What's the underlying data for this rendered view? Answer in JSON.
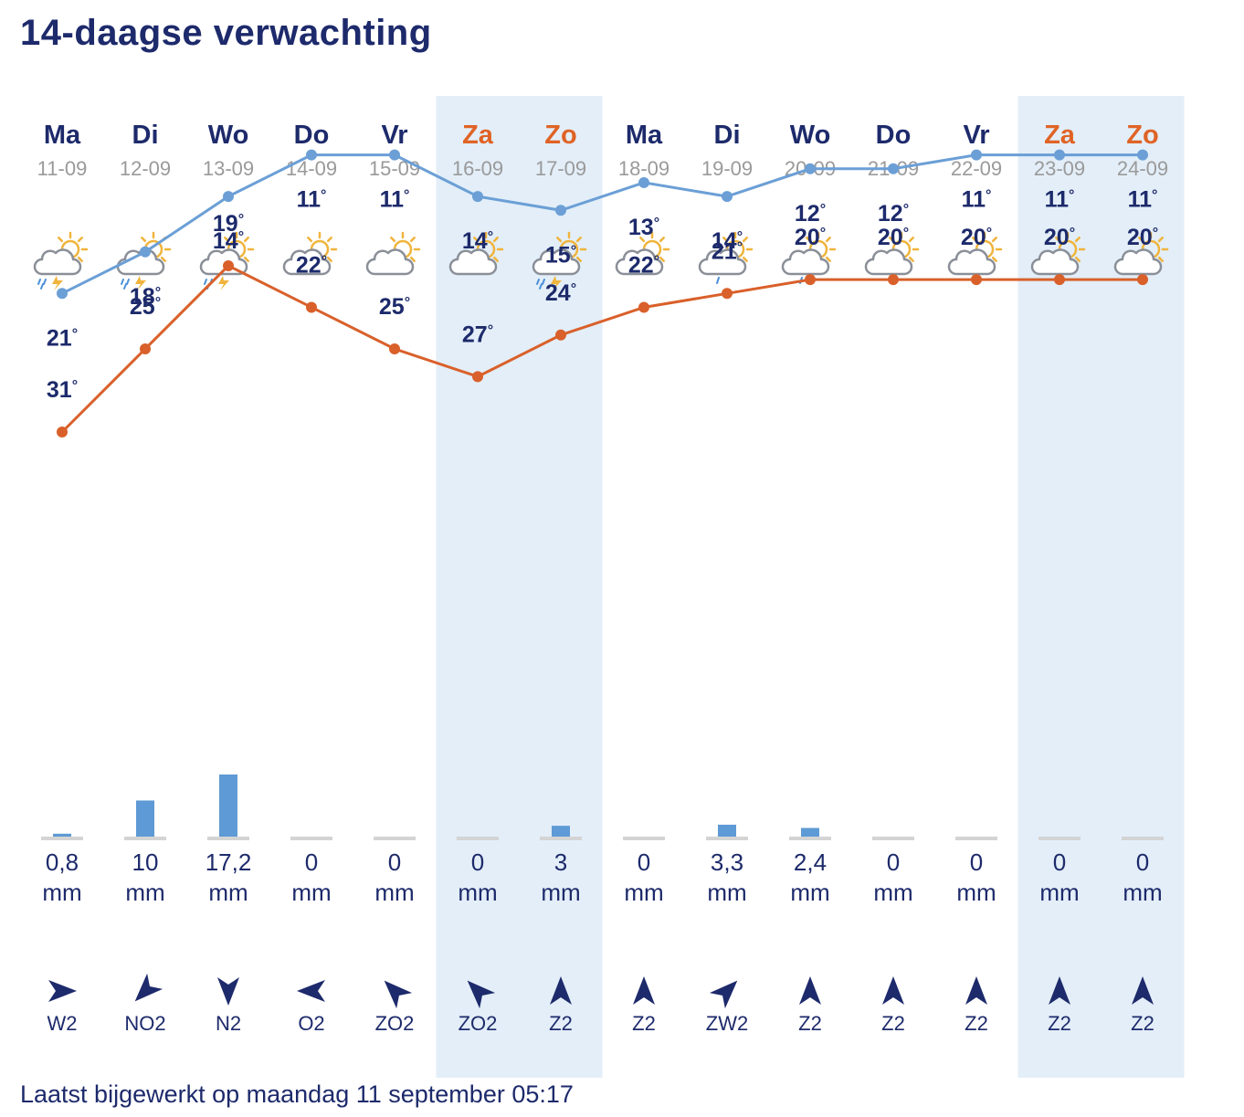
{
  "page": {
    "title": "14-daagse verwachting",
    "footer": "Laatst bijgewerkt op maandag 11 september 05:17"
  },
  "colors": {
    "max_line": "#d9602a",
    "min_line": "#6b9fd6",
    "weekend_bg": "#e3eef8",
    "text": "#1d2a6b",
    "weekend_text": "#e06326"
  },
  "chart_data": {
    "type": "line",
    "title": "14-daagse verwachting",
    "categories": [
      "Ma",
      "Di",
      "Wo",
      "Do",
      "Vr",
      "Za",
      "Zo",
      "Ma",
      "Di",
      "Wo",
      "Do",
      "Vr",
      "Za",
      "Zo"
    ],
    "dates": [
      "11-09",
      "12-09",
      "13-09",
      "14-09",
      "15-09",
      "16-09",
      "17-09",
      "18-09",
      "19-09",
      "20-09",
      "21-09",
      "22-09",
      "23-09",
      "24-09"
    ],
    "weekend": [
      false,
      false,
      false,
      false,
      false,
      true,
      true,
      false,
      false,
      false,
      false,
      false,
      true,
      true
    ],
    "icons": [
      "sun-cloud-thunder-rain-icon",
      "sun-cloud-thunder-rain-icon",
      "sun-cloud-thunder-rain-icon",
      "sun-cloud-icon",
      "sun-cloud-icon",
      "sun-cloud-icon",
      "sun-cloud-thunder-rain-icon",
      "sun-cloud-icon",
      "sun-cloud-drizzle-icon",
      "sun-cloud-drizzle-icon",
      "sun-cloud-icon",
      "sun-cloud-icon",
      "sun-cloud-icon",
      "sun-cloud-icon"
    ],
    "series": [
      {
        "name": "max",
        "values": [
          31,
          25,
          19,
          22,
          25,
          27,
          24,
          22,
          21,
          20,
          20,
          20,
          20,
          20
        ]
      },
      {
        "name": "min",
        "values": [
          21,
          18,
          14,
          11,
          11,
          14,
          15,
          13,
          14,
          12,
          12,
          11,
          11,
          11
        ]
      }
    ],
    "temp_unit": "°",
    "precipitation": {
      "values": [
        0.8,
        10,
        17.2,
        0,
        0,
        0,
        3,
        0,
        3.3,
        2.4,
        0,
        0,
        0,
        0
      ],
      "labels": [
        "0,8",
        "10",
        "17,2",
        "0",
        "0",
        "0",
        "3",
        "0",
        "3,3",
        "2,4",
        "0",
        "0",
        "0",
        "0"
      ],
      "unit": "mm"
    },
    "wind": {
      "labels": [
        "W2",
        "NO2",
        "N2",
        "O2",
        "ZO2",
        "ZO2",
        "Z2",
        "Z2",
        "ZW2",
        "Z2",
        "Z2",
        "Z2",
        "Z2",
        "Z2"
      ],
      "arrow_angles_deg": [
        90,
        225,
        180,
        270,
        315,
        315,
        0,
        0,
        45,
        0,
        0,
        0,
        0,
        0
      ]
    }
  }
}
